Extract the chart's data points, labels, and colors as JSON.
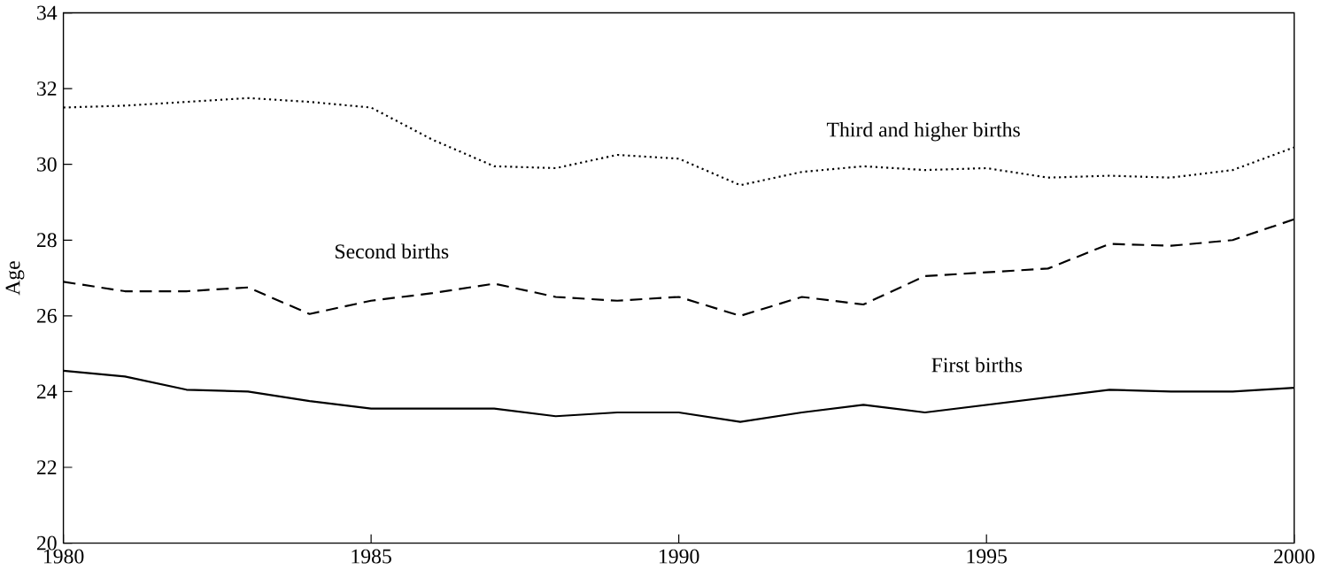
{
  "chart_data": {
    "type": "line",
    "ylabel": "Age",
    "x": [
      1980,
      1981,
      1982,
      1983,
      1984,
      1985,
      1986,
      1987,
      1988,
      1989,
      1990,
      1991,
      1992,
      1993,
      1994,
      1995,
      1996,
      1997,
      1998,
      1999,
      2000
    ],
    "series": [
      {
        "name": "First births",
        "color": "#000000",
        "line_style": "solid",
        "values": [
          24.55,
          24.4,
          24.05,
          24.0,
          23.75,
          23.55,
          23.55,
          23.55,
          23.35,
          23.45,
          23.45,
          23.2,
          23.45,
          23.65,
          23.45,
          23.65,
          23.85,
          24.05,
          24.0,
          24.0,
          24.1
        ]
      },
      {
        "name": "Second births",
        "color": "#000000",
        "line_style": "dashed",
        "values": [
          26.9,
          26.65,
          26.65,
          26.75,
          26.05,
          26.4,
          26.6,
          26.85,
          26.5,
          26.4,
          26.5,
          26.0,
          26.5,
          26.3,
          27.05,
          27.15,
          27.25,
          27.9,
          27.85,
          28.0,
          28.55
        ]
      },
      {
        "name": "Third and higher births",
        "color": "#000000",
        "line_style": "dotted",
        "values": [
          31.5,
          31.55,
          31.65,
          31.75,
          31.65,
          31.5,
          30.65,
          29.95,
          29.9,
          30.25,
          30.15,
          29.45,
          29.8,
          29.95,
          29.85,
          29.9,
          29.65,
          29.7,
          29.65,
          29.85,
          30.45
        ]
      }
    ],
    "xlim": [
      1980,
      2000
    ],
    "ylim": [
      20,
      34
    ],
    "xticks": [
      1980,
      1985,
      1990,
      1995,
      2000
    ],
    "yticks": [
      20,
      22,
      24,
      26,
      28,
      30,
      32,
      34
    ],
    "grid": false,
    "legend": false,
    "marker": "none"
  }
}
